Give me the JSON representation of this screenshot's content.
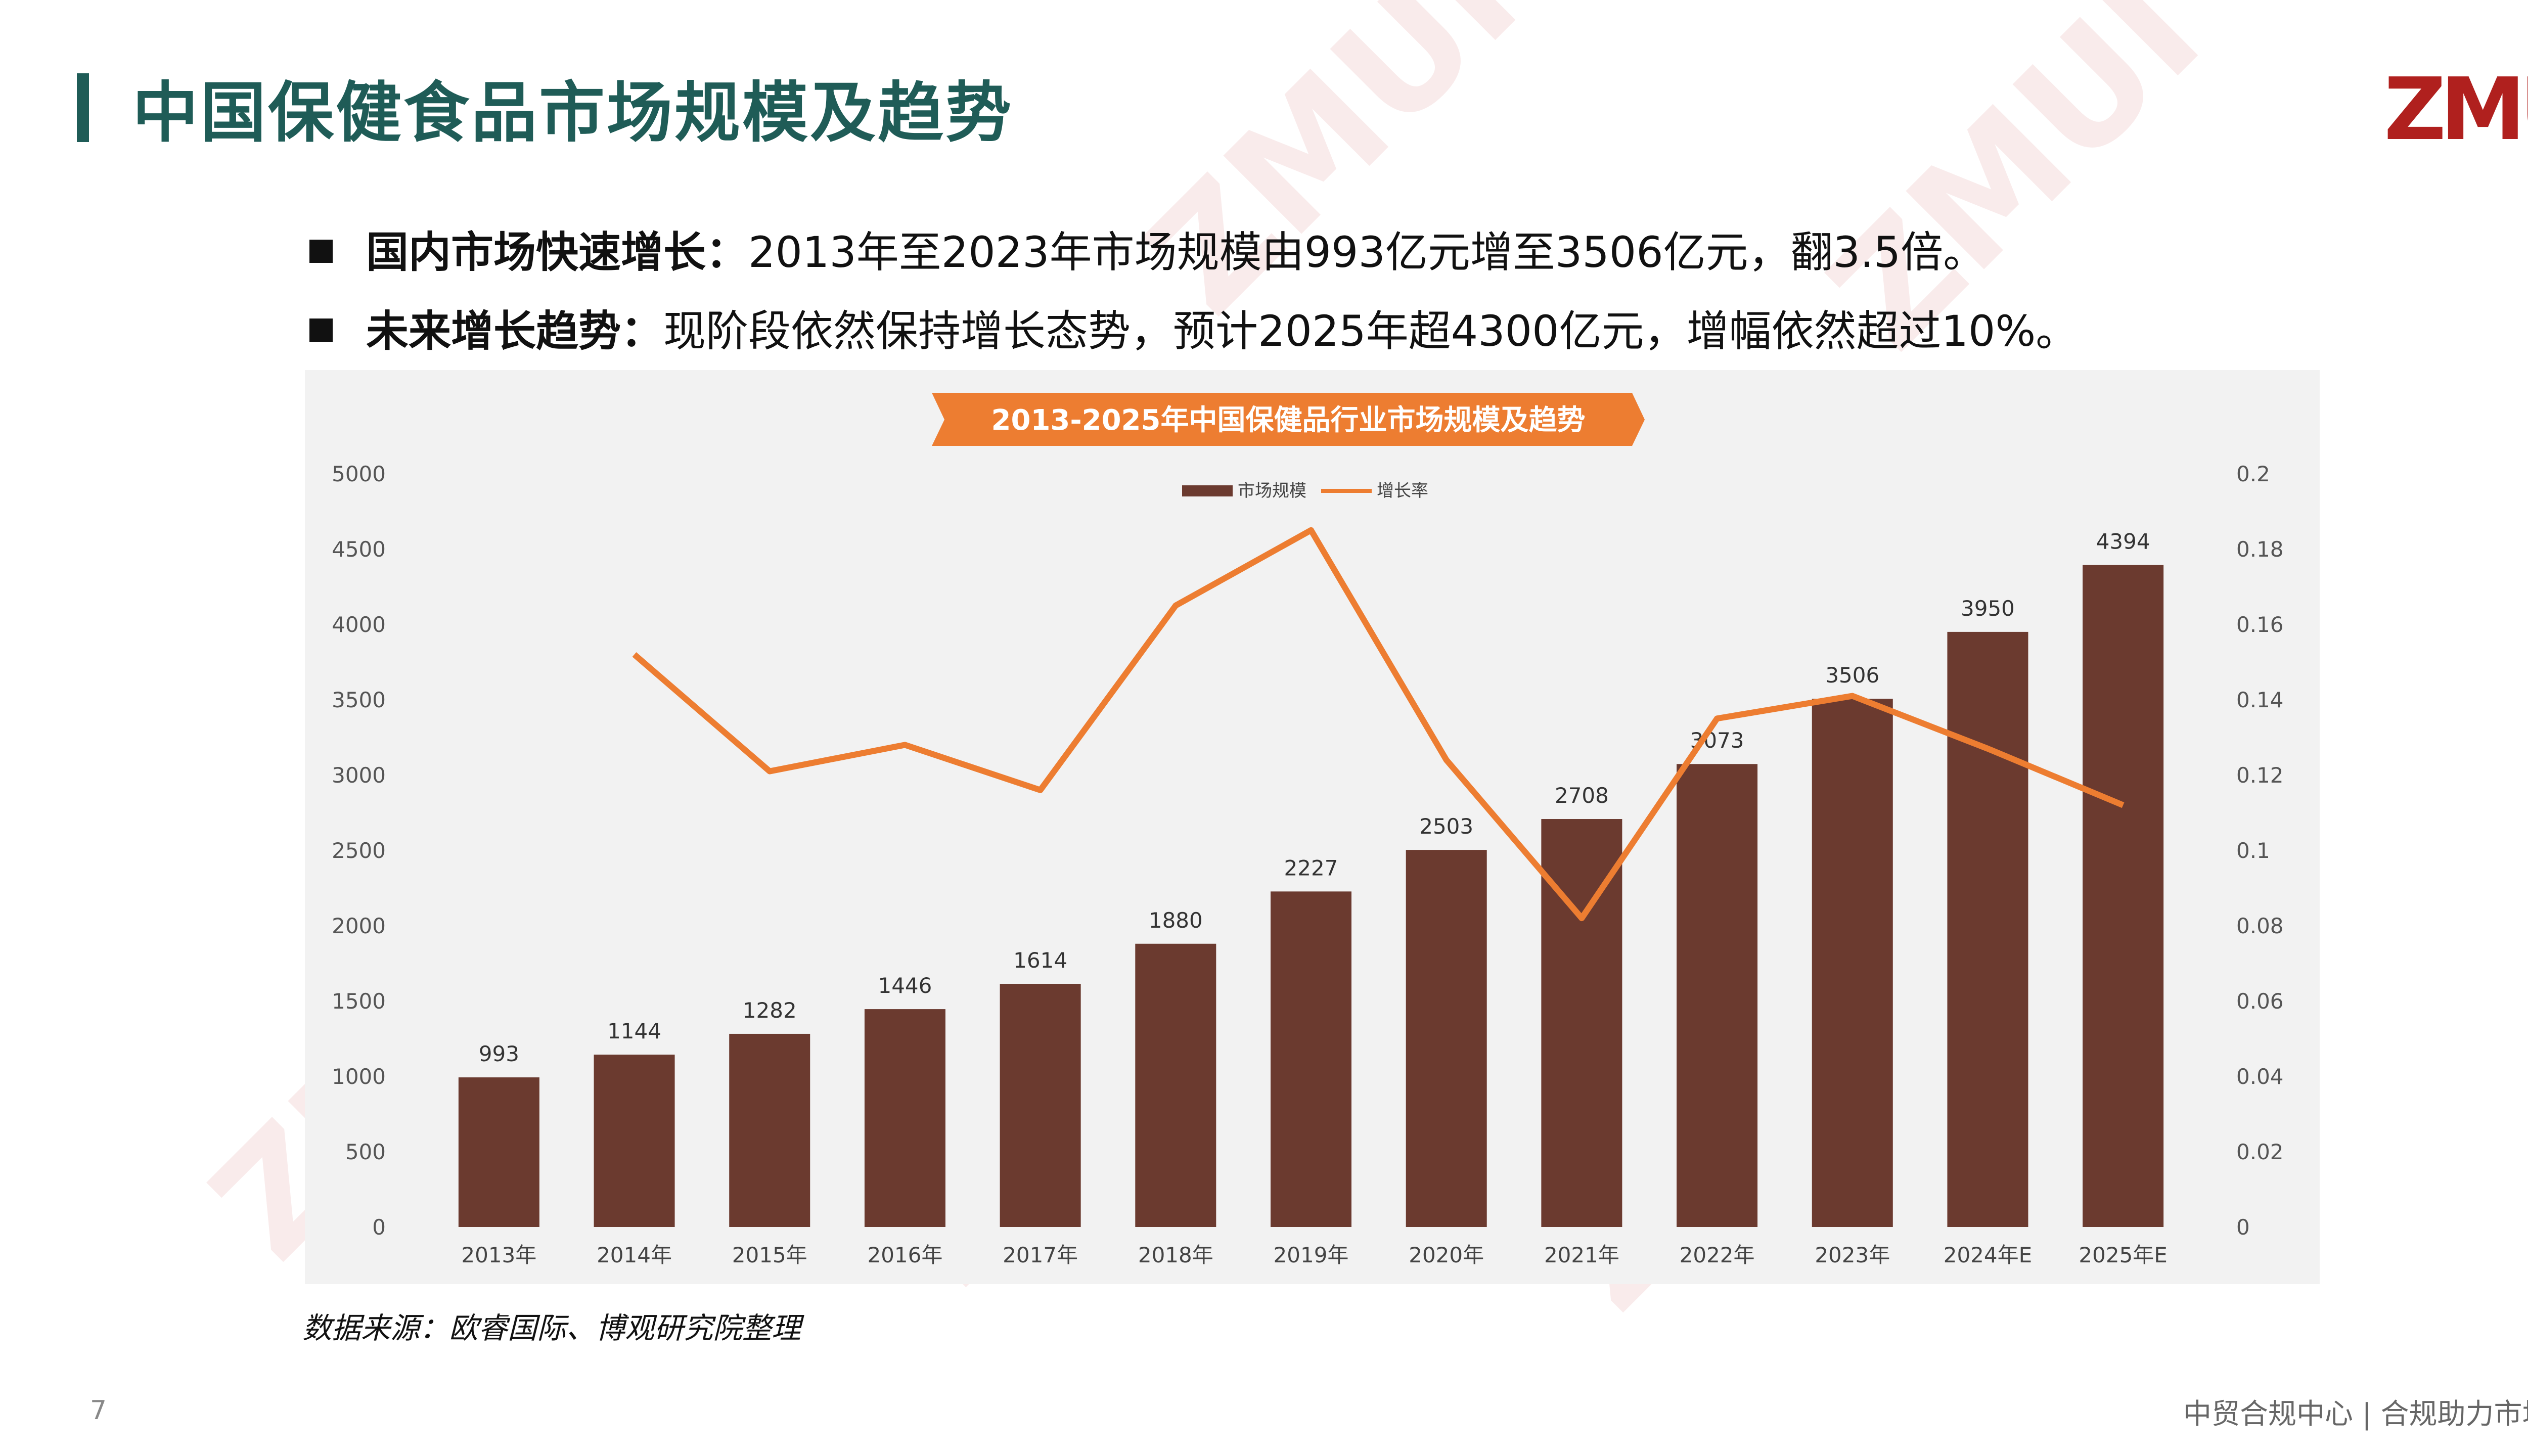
{
  "header": {
    "title": "中国保健食品市场规模及趋势",
    "logo_text": "ZMUI"
  },
  "bullets": [
    {
      "bold": "国内市场快速增长：",
      "text": "2013年至2023年市场规模由993亿元增至3506亿元，翻3.5倍。"
    },
    {
      "bold": "未来增长趋势：",
      "text": "现阶段依然保持增长态势，预计2025年超4300亿元，增幅依然超过10%。"
    }
  ],
  "source": "数据来源：欧睿国际、博观研究院整理",
  "footer": {
    "page_number": "7",
    "brand": "中贸合规中心 | 合规助力市场"
  },
  "colors": {
    "title": "#1f5c57",
    "bar": "#6b3a2f",
    "line": "#ed7d31",
    "banner": "#ed7d31"
  },
  "chart_data": {
    "type": "bar",
    "title": "2013-2025年中国保健品行业市场规模及趋势",
    "categories": [
      "2013年",
      "2014年",
      "2015年",
      "2016年",
      "2017年",
      "2018年",
      "2019年",
      "2020年",
      "2021年",
      "2022年",
      "2023年",
      "2024年E",
      "2025年E"
    ],
    "series": [
      {
        "name": "市场规模",
        "type": "bar",
        "axis": "left",
        "values": [
          993,
          1144,
          1282,
          1446,
          1614,
          1880,
          2227,
          2503,
          2708,
          3073,
          3506,
          3950,
          4394
        ]
      },
      {
        "name": "增长率",
        "type": "line",
        "axis": "right",
        "values": [
          null,
          0.152,
          0.121,
          0.128,
          0.116,
          0.165,
          0.185,
          0.124,
          0.082,
          0.135,
          0.141,
          0.127,
          0.112
        ]
      }
    ],
    "ylim_left": [
      0,
      5000
    ],
    "yticks_left": [
      "0",
      "500",
      "1000",
      "1500",
      "2000",
      "2500",
      "3000",
      "3500",
      "4000",
      "4500",
      "5000"
    ],
    "ylim_right": [
      0,
      0.2
    ],
    "yticks_right": [
      "0",
      "0.02",
      "0.04",
      "0.06",
      "0.08",
      "0.1",
      "0.12",
      "0.14",
      "0.16",
      "0.18",
      "0.2"
    ],
    "legend_position": "top-center",
    "grid": false
  }
}
